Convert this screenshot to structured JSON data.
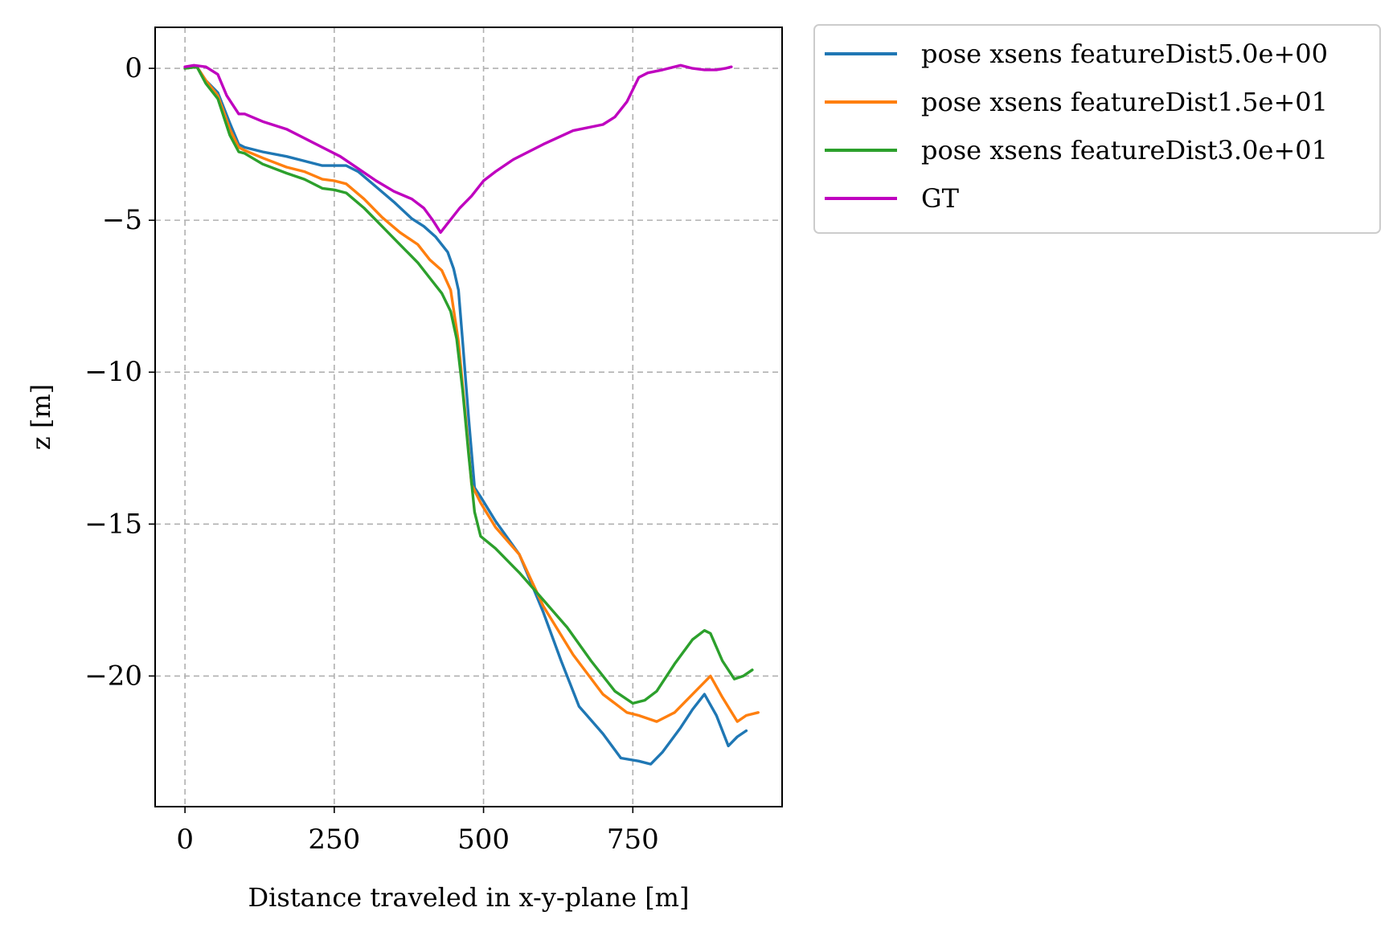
{
  "chart_data": {
    "type": "line",
    "title": "",
    "xlabel": "Distance traveled in x-y-plane [m]",
    "ylabel": "z [m]",
    "xlim": [
      -50,
      1000
    ],
    "ylim": [
      -24.3,
      1.35
    ],
    "xticks": [
      0,
      250,
      500,
      750
    ],
    "xtick_labels": [
      "0",
      "250",
      "500",
      "750"
    ],
    "yticks": [
      0,
      -5,
      -10,
      -15,
      -20
    ],
    "ytick_labels": [
      "0",
      "−5",
      "−10",
      "−15",
      "−20"
    ],
    "grid": true,
    "legend_position": "outside-top-right",
    "series": [
      {
        "name": "pose xsens featureDist5.0e+00",
        "color": "#1f77b4",
        "x": [
          0,
          20,
          35,
          55,
          75,
          90,
          100,
          130,
          170,
          200,
          230,
          250,
          270,
          290,
          320,
          350,
          380,
          400,
          420,
          440,
          450,
          458,
          465,
          475,
          485,
          495,
          520,
          560,
          600,
          630,
          660,
          700,
          730,
          760,
          780,
          800,
          830,
          850,
          870,
          890,
          910,
          925,
          940
        ],
        "y": [
          0,
          0.05,
          -0.4,
          -0.8,
          -1.8,
          -2.5,
          -2.6,
          -2.75,
          -2.9,
          -3.05,
          -3.2,
          -3.2,
          -3.2,
          -3.4,
          -3.9,
          -4.4,
          -4.95,
          -5.2,
          -5.55,
          -6.05,
          -6.6,
          -7.3,
          -9.0,
          -11.5,
          -13.8,
          -14.1,
          -14.9,
          -16.0,
          -17.9,
          -19.5,
          -21.0,
          -21.9,
          -22.7,
          -22.8,
          -22.9,
          -22.5,
          -21.7,
          -21.1,
          -20.6,
          -21.3,
          -22.3,
          -22.0,
          -21.8
        ]
      },
      {
        "name": "pose xsens featureDist1.5e+01",
        "color": "#ff7f0e",
        "x": [
          0,
          20,
          35,
          55,
          75,
          90,
          100,
          130,
          170,
          200,
          230,
          250,
          270,
          300,
          330,
          360,
          390,
          410,
          430,
          445,
          458,
          470,
          480,
          495,
          520,
          560,
          600,
          650,
          700,
          740,
          760,
          790,
          820,
          850,
          880,
          900,
          925,
          940,
          960
        ],
        "y": [
          0,
          0.05,
          -0.4,
          -0.9,
          -2.0,
          -2.6,
          -2.7,
          -2.95,
          -3.25,
          -3.4,
          -3.65,
          -3.7,
          -3.8,
          -4.3,
          -4.9,
          -5.4,
          -5.8,
          -6.3,
          -6.65,
          -7.3,
          -9.0,
          -11.5,
          -13.7,
          -14.3,
          -15.1,
          -16.0,
          -17.7,
          -19.3,
          -20.6,
          -21.2,
          -21.3,
          -21.5,
          -21.2,
          -20.6,
          -20.0,
          -20.7,
          -21.5,
          -21.3,
          -21.2
        ]
      },
      {
        "name": "pose xsens featureDist3.0e+01",
        "color": "#2ca02c",
        "x": [
          0,
          20,
          35,
          55,
          75,
          90,
          100,
          130,
          170,
          200,
          230,
          250,
          270,
          300,
          330,
          360,
          390,
          410,
          430,
          445,
          455,
          465,
          475,
          485,
          495,
          520,
          560,
          600,
          640,
          680,
          720,
          750,
          770,
          790,
          820,
          850,
          870,
          880,
          900,
          920,
          935,
          950
        ],
        "y": [
          0,
          0.05,
          -0.5,
          -1.0,
          -2.2,
          -2.75,
          -2.8,
          -3.15,
          -3.45,
          -3.65,
          -3.95,
          -4.0,
          -4.1,
          -4.6,
          -5.2,
          -5.8,
          -6.4,
          -6.9,
          -7.4,
          -8.0,
          -8.9,
          -10.6,
          -12.7,
          -14.6,
          -15.4,
          -15.8,
          -16.6,
          -17.5,
          -18.4,
          -19.5,
          -20.5,
          -20.9,
          -20.8,
          -20.5,
          -19.6,
          -18.8,
          -18.5,
          -18.6,
          -19.5,
          -20.1,
          -20.0,
          -19.8
        ]
      },
      {
        "name": "GT",
        "color": "#bf00bf",
        "x": [
          0,
          15,
          35,
          55,
          70,
          90,
          100,
          130,
          170,
          200,
          230,
          260,
          290,
          320,
          350,
          380,
          400,
          415,
          428,
          440,
          460,
          480,
          500,
          520,
          550,
          600,
          650,
          700,
          720,
          740,
          760,
          775,
          800,
          830,
          850,
          870,
          890,
          905,
          915
        ],
        "y": [
          0.05,
          0.1,
          0.05,
          -0.2,
          -0.9,
          -1.5,
          -1.5,
          -1.75,
          -2.0,
          -2.3,
          -2.6,
          -2.9,
          -3.3,
          -3.7,
          -4.05,
          -4.3,
          -4.6,
          -5.0,
          -5.4,
          -5.1,
          -4.6,
          -4.2,
          -3.7,
          -3.4,
          -3.0,
          -2.5,
          -2.05,
          -1.85,
          -1.6,
          -1.1,
          -0.3,
          -0.15,
          -0.05,
          0.1,
          0.0,
          -0.05,
          -0.05,
          0.0,
          0.05
        ]
      }
    ]
  }
}
